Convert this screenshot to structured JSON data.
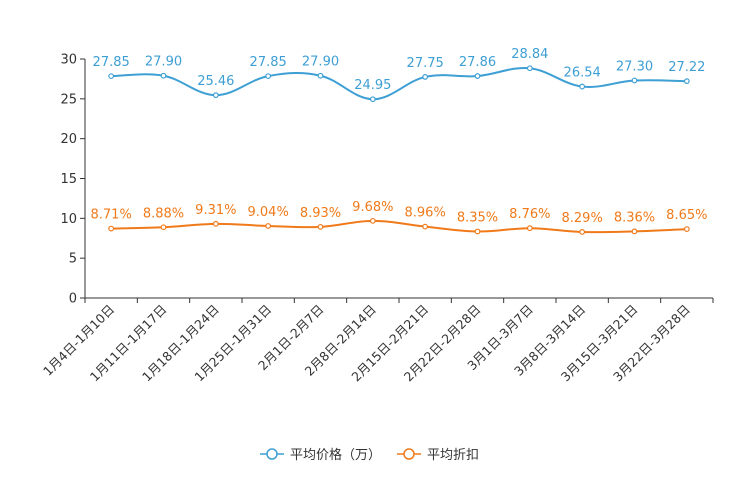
{
  "chart_data": {
    "type": "line",
    "title": "",
    "xlabel": "",
    "ylabel": "",
    "ylim": [
      0,
      30
    ],
    "yticks": [
      0,
      5,
      10,
      15,
      20,
      25,
      30
    ],
    "categories": [
      "1月4日-1月10日",
      "1月11日-1月17日",
      "1月18日-1月24日",
      "1月25日-1月31日",
      "2月1日-2月7日",
      "2月8日-2月14日",
      "2月15日-2月21日",
      "2月22日-2月28日",
      "3月1日-3月7日",
      "3月8日-3月14日",
      "3月15日-3月21日",
      "3月22日-3月28日"
    ],
    "series": [
      {
        "name": "平均价格（万）",
        "color": "#3d9fd4",
        "values": [
          27.85,
          27.9,
          25.46,
          27.85,
          27.9,
          24.95,
          27.75,
          27.86,
          28.84,
          26.54,
          27.3,
          27.22
        ],
        "labels": [
          "27.85",
          "27.90",
          "25.46",
          "27.85",
          "27.90",
          "24.95",
          "27.75",
          "27.86",
          "28.84",
          "26.54",
          "27.30",
          "27.22"
        ]
      },
      {
        "name": "平均折扣",
        "color": "#f07a1a",
        "values": [
          8.71,
          8.88,
          9.31,
          9.04,
          8.93,
          9.68,
          8.96,
          8.35,
          8.76,
          8.29,
          8.36,
          8.65
        ],
        "labels": [
          "8.71%",
          "8.88%",
          "9.31%",
          "9.04%",
          "8.93%",
          "9.68%",
          "8.96%",
          "8.35%",
          "8.76%",
          "8.29%",
          "8.36%",
          "8.65%"
        ]
      }
    ],
    "legend": "bottom-center"
  }
}
